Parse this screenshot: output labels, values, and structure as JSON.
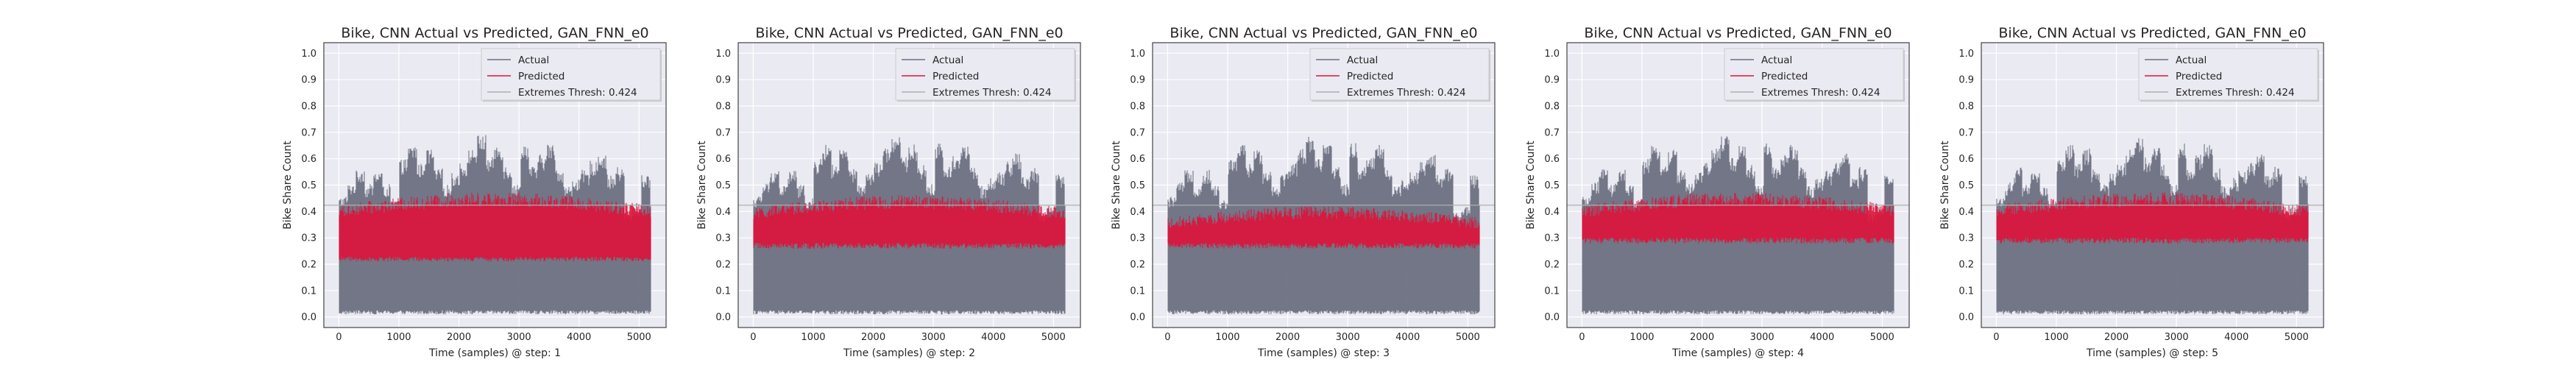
{
  "figure": {
    "background": "#ffffff",
    "axes_background": "#eaeaf2",
    "grid_color": "#ffffff",
    "spine_color": "#333333"
  },
  "chart_data": [
    {
      "type": "line",
      "title": "Bike, CNN Actual vs Predicted, GAN_FNN_e0",
      "xlabel": "Time (samples) @ step: 1",
      "ylabel": "Bike Share Count",
      "xlim": [
        -250,
        5450
      ],
      "ylim": [
        -0.04,
        1.04
      ],
      "xticks": [
        0,
        1000,
        2000,
        3000,
        4000,
        5000
      ],
      "yticks": [
        0.0,
        0.1,
        0.2,
        0.3,
        0.4,
        0.5,
        0.6,
        0.7,
        0.8,
        0.9,
        1.0
      ],
      "grid": true,
      "legend_position": "upper-right",
      "n_samples": 5200,
      "series": [
        {
          "name": "Actual",
          "color": "#6b7080",
          "typical_min": 0.01,
          "typical_peak": 0.65
        },
        {
          "name": "Predicted",
          "color": "#dc143c",
          "typical_min": 0.22,
          "typical_peak": 0.45
        },
        {
          "name": "Extremes Thresh: 0.424",
          "color": "#b0b0b0",
          "value": 0.424
        }
      ]
    },
    {
      "type": "line",
      "title": "Bike, CNN Actual vs Predicted, GAN_FNN_e0",
      "xlabel": "Time (samples) @ step: 2",
      "ylabel": "Bike Share Count",
      "xlim": [
        -250,
        5450
      ],
      "ylim": [
        -0.04,
        1.04
      ],
      "xticks": [
        0,
        1000,
        2000,
        3000,
        4000,
        5000
      ],
      "yticks": [
        0.0,
        0.1,
        0.2,
        0.3,
        0.4,
        0.5,
        0.6,
        0.7,
        0.8,
        0.9,
        1.0
      ],
      "grid": true,
      "legend_position": "upper-right",
      "n_samples": 5200,
      "series": [
        {
          "name": "Actual",
          "color": "#6b7080",
          "typical_min": 0.01,
          "typical_peak": 0.65
        },
        {
          "name": "Predicted",
          "color": "#dc143c",
          "typical_min": 0.27,
          "typical_peak": 0.44
        },
        {
          "name": "Extremes Thresh: 0.424",
          "color": "#b0b0b0",
          "value": 0.424
        }
      ]
    },
    {
      "type": "line",
      "title": "Bike, CNN Actual vs Predicted, GAN_FNN_e0",
      "xlabel": "Time (samples) @ step: 3",
      "ylabel": "Bike Share Count",
      "xlim": [
        -250,
        5450
      ],
      "ylim": [
        -0.04,
        1.04
      ],
      "xticks": [
        0,
        1000,
        2000,
        3000,
        4000,
        5000
      ],
      "yticks": [
        0.0,
        0.1,
        0.2,
        0.3,
        0.4,
        0.5,
        0.6,
        0.7,
        0.8,
        0.9,
        1.0
      ],
      "grid": true,
      "legend_position": "upper-right",
      "n_samples": 5200,
      "series": [
        {
          "name": "Actual",
          "color": "#6b7080",
          "typical_min": 0.01,
          "typical_peak": 0.65
        },
        {
          "name": "Predicted",
          "color": "#dc143c",
          "typical_min": 0.27,
          "typical_peak": 0.4
        },
        {
          "name": "Extremes Thresh: 0.424",
          "color": "#b0b0b0",
          "value": 0.424
        }
      ]
    },
    {
      "type": "line",
      "title": "Bike, CNN Actual vs Predicted, GAN_FNN_e0",
      "xlabel": "Time (samples) @ step: 4",
      "ylabel": "Bike Share Count",
      "xlim": [
        -250,
        5450
      ],
      "ylim": [
        -0.04,
        1.04
      ],
      "xticks": [
        0,
        1000,
        2000,
        3000,
        4000,
        5000
      ],
      "yticks": [
        0.0,
        0.1,
        0.2,
        0.3,
        0.4,
        0.5,
        0.6,
        0.7,
        0.8,
        0.9,
        1.0
      ],
      "grid": true,
      "legend_position": "upper-right",
      "n_samples": 5200,
      "series": [
        {
          "name": "Actual",
          "color": "#6b7080",
          "typical_min": 0.01,
          "typical_peak": 0.65
        },
        {
          "name": "Predicted",
          "color": "#dc143c",
          "typical_min": 0.29,
          "typical_peak": 0.45
        },
        {
          "name": "Extremes Thresh: 0.424",
          "color": "#b0b0b0",
          "value": 0.424
        }
      ]
    },
    {
      "type": "line",
      "title": "Bike, CNN Actual vs Predicted, GAN_FNN_e0",
      "xlabel": "Time (samples) @ step: 5",
      "ylabel": "Bike Share Count",
      "xlim": [
        -250,
        5450
      ],
      "ylim": [
        -0.04,
        1.04
      ],
      "xticks": [
        0,
        1000,
        2000,
        3000,
        4000,
        5000
      ],
      "yticks": [
        0.0,
        0.1,
        0.2,
        0.3,
        0.4,
        0.5,
        0.6,
        0.7,
        0.8,
        0.9,
        1.0
      ],
      "grid": true,
      "legend_position": "upper-right",
      "n_samples": 5200,
      "series": [
        {
          "name": "Actual",
          "color": "#6b7080",
          "typical_min": 0.01,
          "typical_peak": 0.65
        },
        {
          "name": "Predicted",
          "color": "#dc143c",
          "typical_min": 0.29,
          "typical_peak": 0.45
        },
        {
          "name": "Extremes Thresh: 0.424",
          "color": "#b0b0b0",
          "value": 0.424
        }
      ]
    }
  ]
}
